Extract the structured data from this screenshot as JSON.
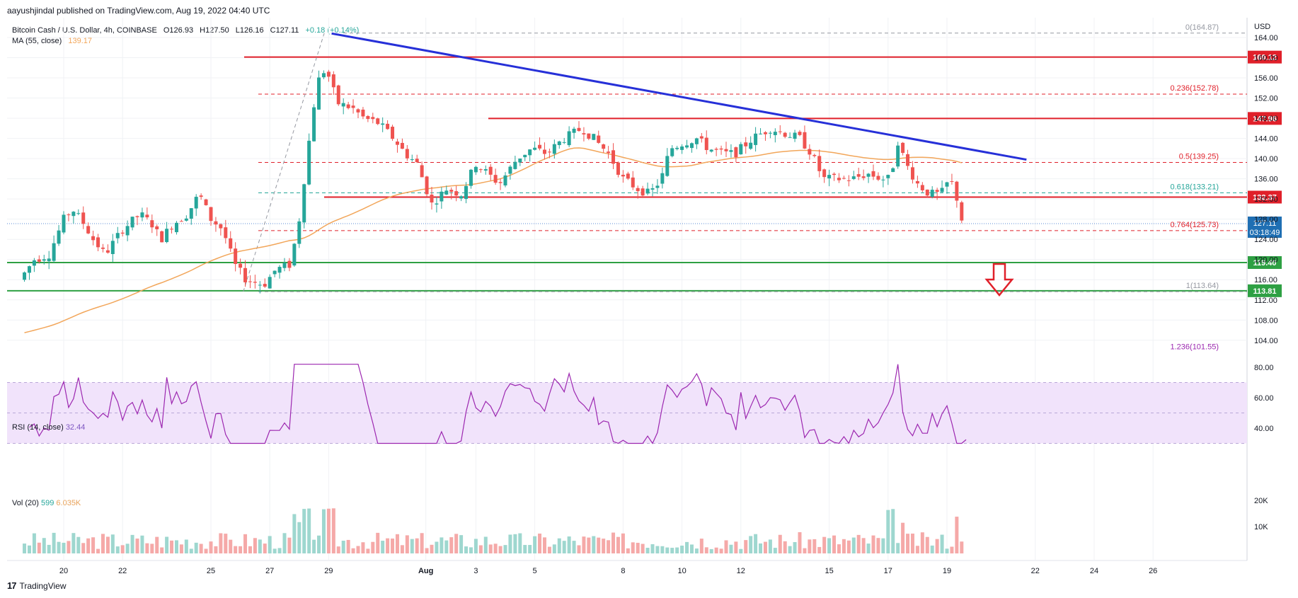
{
  "header": {
    "published_by": "aayushjindal published on TradingView.com, Aug 19, 2022 04:40 UTC"
  },
  "legend": {
    "symbol": "Bitcoin Cash / U.S. Dollar, 4h, COINBASE",
    "open": "O126.93",
    "high": "H127.50",
    "low": "L126.16",
    "close": "C127.11",
    "change": "+0.18 (+0.14%)",
    "ma_label": "MA (55, close)",
    "ma_value": "139.17"
  },
  "rsi_legend": {
    "label": "RSI (14, close)",
    "value": "32.44"
  },
  "vol_legend": {
    "label": "Vol (20)",
    "value1": "599",
    "value2": "6.035K"
  },
  "footer": {
    "brand": "TradingView",
    "logo": "17"
  },
  "colors": {
    "up": "#26a69a",
    "down": "#ef5350",
    "ma": "#f2a65a",
    "trendline": "#2630d8",
    "resistance": "#e0202a",
    "support": "#2ea043",
    "rsi": "#9c27b0",
    "rsi_band": "#f1e3fb"
  },
  "chart_data": [
    {
      "type": "candlestick",
      "price_axis": {
        "unit": "USD",
        "ticks": [
          "164.00",
          "160.00",
          "156.00",
          "152.00",
          "148.00",
          "144.00",
          "140.00",
          "136.00",
          "132.00",
          "128.00",
          "124.00",
          "120.00",
          "116.00",
          "112.00",
          "108.00",
          "104.00"
        ]
      },
      "time_axis": {
        "ticks": [
          "20",
          "22",
          "25",
          "27",
          "29",
          "Aug",
          "3",
          "5",
          "8",
          "10",
          "12",
          "15",
          "17",
          "19",
          "22",
          "24",
          "26"
        ]
      },
      "last_price": "127.11",
      "countdown": "03:18:49",
      "horizontal_levels": [
        {
          "label": "160.12",
          "value": 160.12,
          "color": "resistance"
        },
        {
          "label": "147.96",
          "value": 147.96,
          "color": "resistance"
        },
        {
          "label": "132.37",
          "value": 132.37,
          "color": "resistance"
        },
        {
          "label": "119.40",
          "value": 119.4,
          "color": "support"
        },
        {
          "label": "113.81",
          "value": 113.81,
          "color": "support"
        }
      ],
      "fibonacci": [
        {
          "label": "0(164.87)",
          "value": 164.87
        },
        {
          "label": "0.236(152.78)",
          "value": 152.78
        },
        {
          "label": "0.5(139.25)",
          "value": 139.25
        },
        {
          "label": "0.618(133.21)",
          "value": 133.21
        },
        {
          "label": "0.764(125.73)",
          "value": 125.73
        },
        {
          "label": "1(113.64)",
          "value": 113.64
        },
        {
          "label": "1.236(101.55)",
          "value": 101.55
        }
      ],
      "trendline": {
        "from": {
          "date": "Jul 29",
          "price": 164.8
        },
        "to": {
          "date": "Aug 21",
          "price": 139.8
        }
      },
      "moving_average": {
        "period": 55,
        "current": 139.17
      },
      "annotation": "bearish-arrow"
    },
    {
      "type": "line",
      "name": "RSI",
      "period": 14,
      "current": 32.44,
      "axis_ticks": [
        "80.00",
        "60.00",
        "40.00"
      ],
      "band": [
        30,
        70
      ]
    },
    {
      "type": "bar",
      "name": "Volume",
      "ma_period": 20,
      "axis_ticks": [
        "20K",
        "10K"
      ]
    }
  ]
}
